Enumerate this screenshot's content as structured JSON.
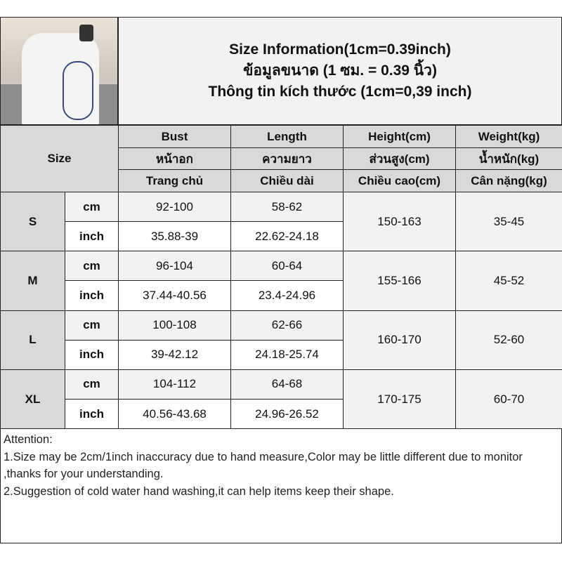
{
  "title": {
    "lines": [
      "Size Information(1cm=0.39inch)",
      "ข้อมูลขนาด (1 ซม. = 0.39 นิ้ว)",
      "Thông tin kích thước (1cm=0,39 inch)"
    ]
  },
  "table": {
    "size_label": "Size",
    "columns": [
      {
        "en": "Bust",
        "th": "หน้าอก",
        "vi": "Trang chủ"
      },
      {
        "en": "Length",
        "th": "ความยาว",
        "vi": "Chiều dài"
      },
      {
        "en": "Height(cm)",
        "th": "ส่วนสูง(cm)",
        "vi": "Chiều cao(cm)"
      },
      {
        "en": "Weight(kg)",
        "th": "น้ำหนัก(kg)",
        "vi": "Cân nặng(kg)"
      }
    ],
    "units": [
      "cm",
      "inch"
    ],
    "rows": [
      {
        "size": "S",
        "cm": [
          "92-100",
          "58-62"
        ],
        "inch": [
          "35.88-39",
          "22.62-24.18"
        ],
        "height": "150-163",
        "weight": "35-45"
      },
      {
        "size": "M",
        "cm": [
          "96-104",
          "60-64"
        ],
        "inch": [
          "37.44-40.56",
          "23.4-24.96"
        ],
        "height": "155-166",
        "weight": "45-52"
      },
      {
        "size": "L",
        "cm": [
          "100-108",
          "62-66"
        ],
        "inch": [
          "39-42.12",
          "24.18-25.74"
        ],
        "height": "160-170",
        "weight": "52-60"
      },
      {
        "size": "XL",
        "cm": [
          "104-112",
          "64-68"
        ],
        "inch": [
          "40.56-43.68",
          "24.96-26.52"
        ],
        "height": "170-175",
        "weight": "60-70"
      }
    ]
  },
  "attention": {
    "heading": "Attention:",
    "notes": [
      "1.Size may be 2cm/1inch inaccuracy due to hand measure,Color may be little different due to monitor ,thanks for your understanding.",
      "2.Suggestion of cold water hand washing,it can help items keep their shape."
    ]
  },
  "colors": {
    "header_bg": "#d9d9d9",
    "light_bg": "#f2f2f2",
    "border": "#222222"
  }
}
